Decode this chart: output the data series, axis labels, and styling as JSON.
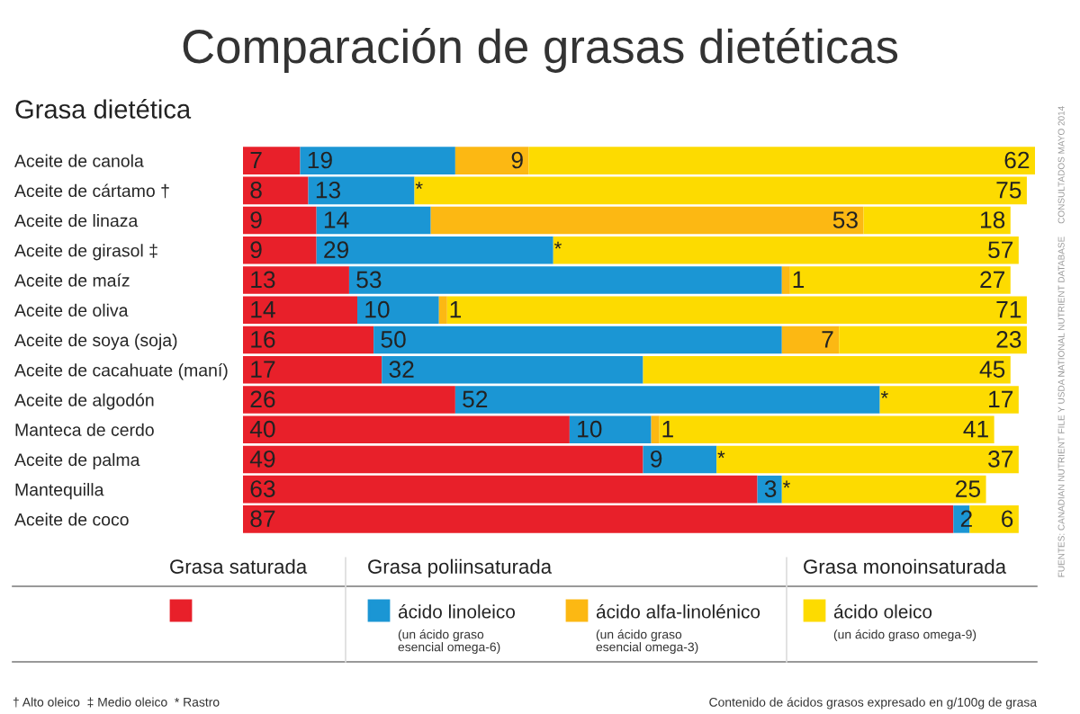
{
  "chart_data": {
    "type": "bar",
    "orientation": "horizontal",
    "stacked": true,
    "title": "Comparación de grasas dietéticas",
    "ylabel": "Grasa dietética",
    "categories": [
      "Aceite de canola",
      "Aceite de cártamo †",
      "Aceite de linaza",
      "Aceite de girasol ‡",
      "Aceite de maíz",
      "Aceite de oliva",
      "Aceite de soya (soja)",
      "Aceite de cacahuate (maní)",
      "Aceite de algodón",
      "Manteca de cerdo",
      "Aceite de palma",
      "Mantequilla",
      "Aceite de coco"
    ],
    "series": [
      {
        "color": "#e8202a",
        "values": [
          7,
          8,
          9,
          9,
          13,
          14,
          16,
          17,
          26,
          40,
          49,
          63,
          87
        ],
        "value_labels": [
          "7",
          "8",
          "9",
          "9",
          "13",
          "14",
          "16",
          "17",
          "26",
          "40",
          "49",
          "63",
          "87"
        ]
      },
      {
        "name": "ácido linoleico",
        "color": "#1b96d4",
        "values": [
          19,
          13,
          14,
          29,
          53,
          10,
          50,
          32,
          52,
          10,
          9,
          3,
          2
        ],
        "value_labels": [
          "19",
          "13",
          "14",
          "29",
          "53",
          "10",
          "50",
          "32",
          "52",
          "10",
          "9",
          "3",
          "2"
        ]
      },
      {
        "name": "ácido alfa-linolénico",
        "color": "#fcb813",
        "values": [
          9,
          null,
          53,
          null,
          1,
          1,
          7,
          null,
          null,
          1,
          null,
          null,
          null
        ],
        "value_labels": [
          "9",
          "*",
          "53",
          "*",
          "1",
          "1",
          "7",
          null,
          "*",
          "1",
          "*",
          "*",
          null
        ]
      },
      {
        "name": "ácido oleico",
        "color": "#fddb00",
        "values": [
          62,
          75,
          18,
          57,
          27,
          71,
          23,
          45,
          17,
          41,
          37,
          25,
          6
        ],
        "value_labels": [
          "62",
          "75",
          "18",
          "57",
          "27",
          "71",
          "23",
          "45",
          "17",
          "41",
          "37",
          "25",
          "6"
        ]
      }
    ],
    "tick_labels": "y",
    "legend": "bottom",
    "annotations": [
      "Grasa saturada",
      "Grasa poliinsaturada",
      "Grasa monoinsaturada",
      "(un ácido graso\nesencial omega-6)",
      "(un ácido graso\nesencial omega-3)",
      "(un ácido graso omega-9)",
      "† Alto oleico  ‡ Medio oleico  * Rastro",
      "Contenido de ácidos grasos expresado en g/100g de grasa",
      "FUENTES: CANADIAN NUTRIENT FILE Y USDA NATIONAL NUTRIENT DATABASE     CONSULTADOS MAYO 2014"
    ]
  }
}
